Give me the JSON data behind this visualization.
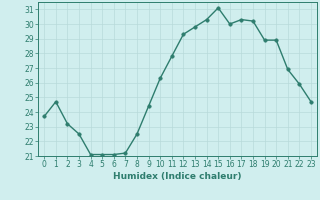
{
  "x": [
    0,
    1,
    2,
    3,
    4,
    5,
    6,
    7,
    8,
    9,
    10,
    11,
    12,
    13,
    14,
    15,
    16,
    17,
    18,
    19,
    20,
    21,
    22,
    23
  ],
  "y": [
    23.7,
    24.7,
    23.2,
    22.5,
    21.1,
    21.1,
    21.1,
    21.2,
    22.5,
    24.4,
    26.3,
    27.8,
    29.3,
    29.8,
    30.3,
    31.1,
    30.0,
    30.3,
    30.2,
    28.9,
    28.9,
    26.9,
    25.9,
    24.7
  ],
  "line_color": "#2e7d6e",
  "marker_color": "#2e7d6e",
  "bg_color": "#d0eeee",
  "grid_color": "#b8dada",
  "xlabel": "Humidex (Indice chaleur)",
  "ylim": [
    21,
    31.5
  ],
  "xlim": [
    -0.5,
    23.5
  ],
  "yticks": [
    21,
    22,
    23,
    24,
    25,
    26,
    27,
    28,
    29,
    30,
    31
  ],
  "xticks": [
    0,
    1,
    2,
    3,
    4,
    5,
    6,
    7,
    8,
    9,
    10,
    11,
    12,
    13,
    14,
    15,
    16,
    17,
    18,
    19,
    20,
    21,
    22,
    23
  ],
  "fontsize_label": 6.5,
  "fontsize_tick": 5.5,
  "line_width": 1.0,
  "marker_size": 2.5
}
